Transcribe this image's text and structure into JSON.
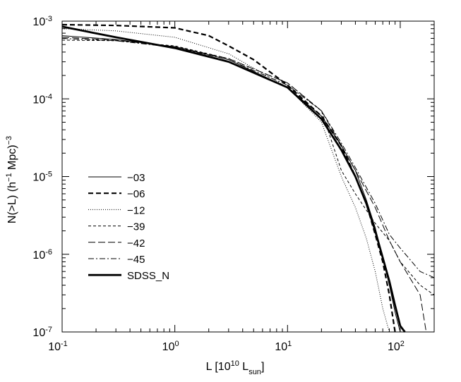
{
  "chart_data": {
    "type": "line",
    "xlabel": "L [10^10 L_sun]",
    "ylabel": "N(>L) (h^-1 Mpc)^-3",
    "xscale": "log",
    "yscale": "log",
    "xlim": [
      0.1,
      200
    ],
    "ylim": [
      1e-07,
      0.001
    ],
    "grid": false,
    "legend_position": "center-left",
    "x_ticks": [
      0.1,
      1,
      10,
      100
    ],
    "x_tick_labels": [
      {
        "base": "10",
        "exp": "-1"
      },
      {
        "base": "10",
        "exp": "0"
      },
      {
        "base": "10",
        "exp": "1"
      },
      {
        "base": "10",
        "exp": "2"
      }
    ],
    "y_ticks": [
      1e-07,
      1e-06,
      1e-05,
      0.0001,
      0.001
    ],
    "y_tick_labels": [
      {
        "base": "10",
        "exp": "-7"
      },
      {
        "base": "10",
        "exp": "-6"
      },
      {
        "base": "10",
        "exp": "-5"
      },
      {
        "base": "10",
        "exp": "-4"
      },
      {
        "base": "10",
        "exp": "-3"
      }
    ],
    "series": [
      {
        "name": "−03",
        "style": "solid-thin",
        "x": [
          0.1,
          0.3,
          1,
          3,
          10,
          20,
          30,
          40,
          50,
          60,
          70,
          80,
          90,
          100
        ],
        "y": [
          0.00065,
          0.00058,
          0.00047,
          0.00032,
          0.00014,
          6e-05,
          2.5e-05,
          1.2e-05,
          5e-06,
          2.2e-06,
          9e-07,
          4e-07,
          1.8e-07,
          1e-07
        ]
      },
      {
        "name": "−06",
        "style": "dashed-thick",
        "x": [
          0.1,
          0.3,
          1,
          2,
          3,
          5,
          10,
          20,
          30,
          40,
          50,
          60,
          70,
          80,
          90
        ],
        "y": [
          0.0009,
          0.00088,
          0.00082,
          0.00065,
          0.00048,
          0.00032,
          0.00015,
          6e-05,
          2.5e-05,
          1e-05,
          4.5e-06,
          1.8e-06,
          8e-07,
          3e-07,
          1e-07
        ]
      },
      {
        "name": "−12",
        "style": "dotted",
        "x": [
          0.1,
          0.3,
          1,
          3,
          10,
          20,
          30,
          40,
          50,
          60,
          70,
          80
        ],
        "y": [
          0.0008,
          0.00075,
          0.00062,
          0.00038,
          0.00014,
          5e-05,
          1e-05,
          4e-06,
          1.6e-06,
          6e-07,
          2e-07,
          1e-07
        ]
      },
      {
        "name": "−39",
        "style": "dashed-thin",
        "x": [
          0.1,
          0.3,
          1,
          3,
          10,
          20,
          30,
          40,
          60,
          80,
          100,
          150,
          200
        ],
        "y": [
          0.00057,
          0.00056,
          0.00048,
          0.00033,
          0.00016,
          7e-05,
          1.2e-05,
          6e-06,
          2.5e-06,
          1.5e-06,
          8e-07,
          4e-07,
          3e-07
        ]
      },
      {
        "name": "−42",
        "style": "longdash",
        "x": [
          0.1,
          0.3,
          1,
          3,
          10,
          20,
          30,
          40,
          60,
          80,
          100,
          150,
          170
        ],
        "y": [
          0.00062,
          0.00057,
          0.00047,
          0.00033,
          0.00016,
          7e-05,
          2.5e-05,
          1.2e-05,
          4e-06,
          1.5e-06,
          8e-07,
          3e-07,
          1e-07
        ]
      },
      {
        "name": "−45",
        "style": "dashdot",
        "x": [
          0.1,
          0.3,
          1,
          3,
          10,
          20,
          30,
          40,
          60,
          80,
          100,
          150,
          200
        ],
        "y": [
          0.0006,
          0.00056,
          0.00046,
          0.00032,
          0.00015,
          7e-05,
          2.7e-05,
          1.3e-05,
          4.5e-06,
          1.8e-06,
          1.2e-06,
          6e-07,
          5e-07
        ]
      },
      {
        "name": "SDSS_N",
        "style": "solid-thick",
        "x": [
          0.1,
          0.3,
          1,
          3,
          10,
          20,
          30,
          40,
          50,
          60,
          70,
          80,
          90,
          100,
          110
        ],
        "y": [
          0.00085,
          0.00062,
          0.00045,
          0.0003,
          0.00014,
          5.5e-05,
          2.2e-05,
          1e-05,
          4.5e-06,
          2e-06,
          9e-07,
          4.5e-07,
          2.2e-07,
          1.2e-07,
          1e-07
        ]
      }
    ]
  }
}
